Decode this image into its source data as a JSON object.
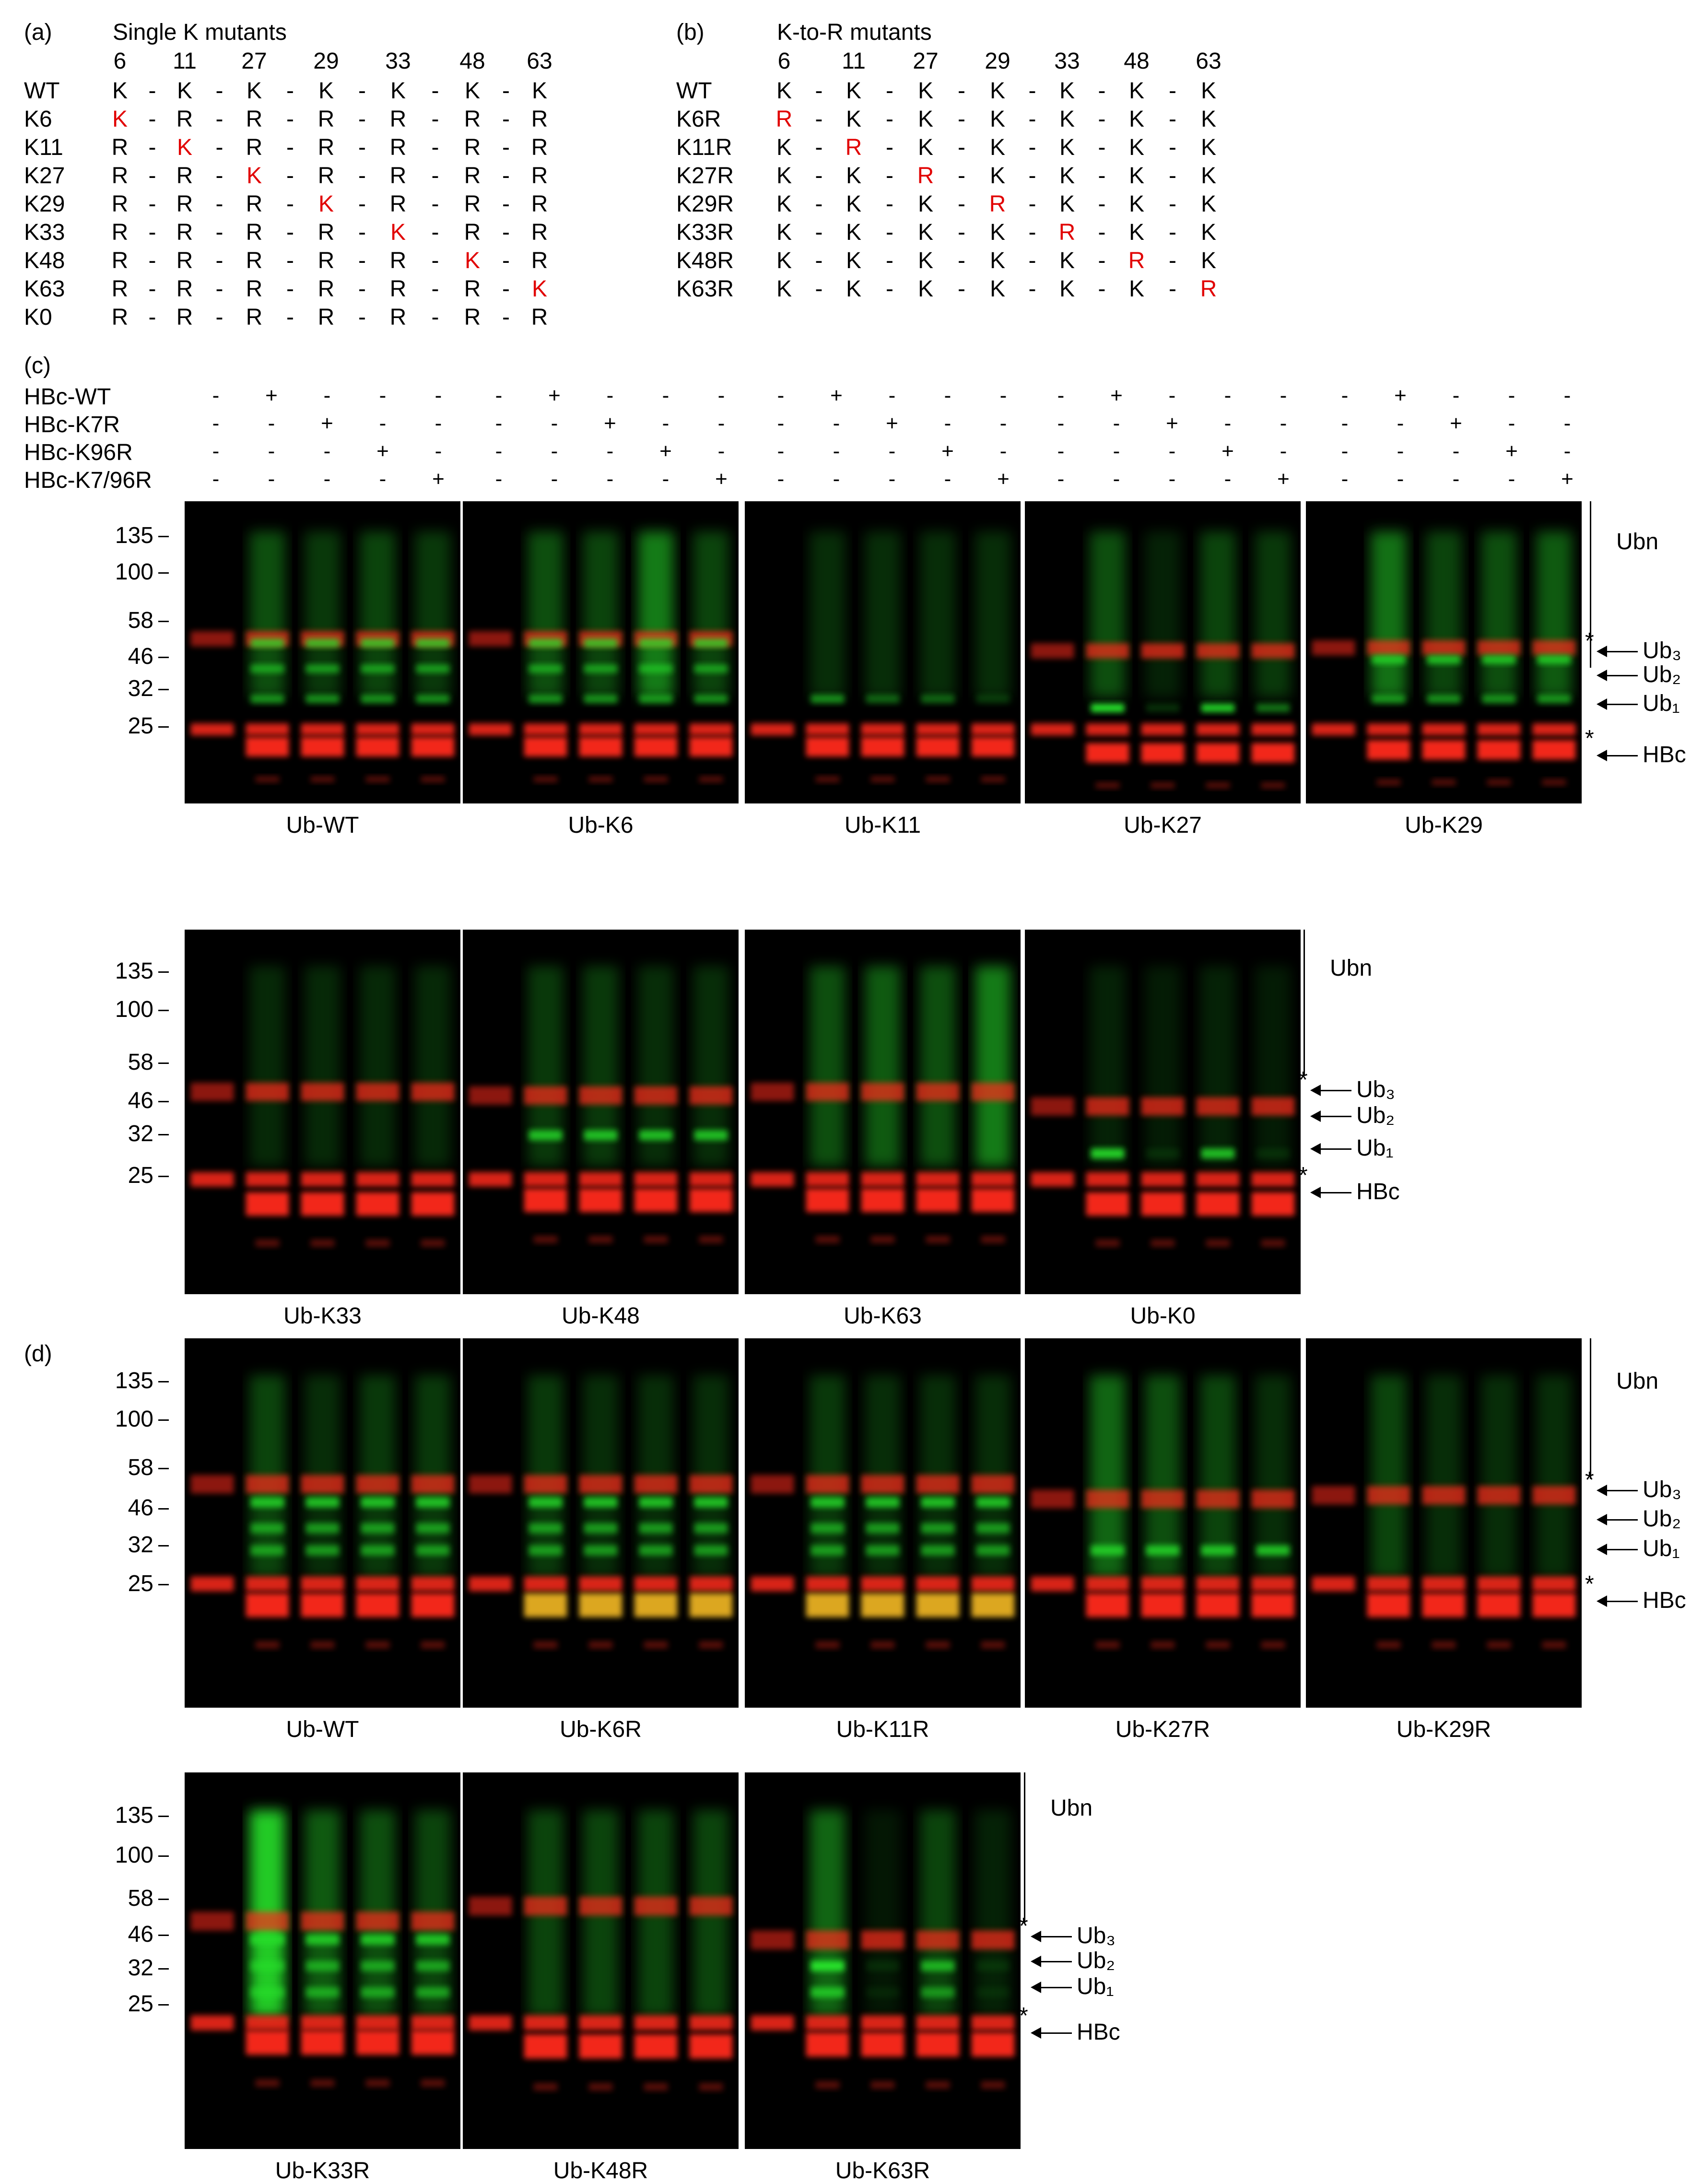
{
  "panel_a": {
    "label": "(a)",
    "title": "Single K mutants",
    "positions": [
      "6",
      "11",
      "27",
      "29",
      "33",
      "48",
      "63"
    ],
    "rows": [
      {
        "name": "WT",
        "cells": [
          "K",
          "K",
          "K",
          "K",
          "K",
          "K",
          "K"
        ],
        "hl": -1
      },
      {
        "name": "K6",
        "cells": [
          "K",
          "R",
          "R",
          "R",
          "R",
          "R",
          "R"
        ],
        "hl": 0
      },
      {
        "name": "K11",
        "cells": [
          "R",
          "K",
          "R",
          "R",
          "R",
          "R",
          "R"
        ],
        "hl": 1
      },
      {
        "name": "K27",
        "cells": [
          "R",
          "R",
          "K",
          "R",
          "R",
          "R",
          "R"
        ],
        "hl": 2
      },
      {
        "name": "K29",
        "cells": [
          "R",
          "R",
          "R",
          "K",
          "R",
          "R",
          "R"
        ],
        "hl": 3
      },
      {
        "name": "K33",
        "cells": [
          "R",
          "R",
          "R",
          "R",
          "K",
          "R",
          "R"
        ],
        "hl": 4
      },
      {
        "name": "K48",
        "cells": [
          "R",
          "R",
          "R",
          "R",
          "R",
          "K",
          "R"
        ],
        "hl": 5
      },
      {
        "name": "K63",
        "cells": [
          "R",
          "R",
          "R",
          "R",
          "R",
          "R",
          "K"
        ],
        "hl": 6
      },
      {
        "name": "K0",
        "cells": [
          "R",
          "R",
          "R",
          "R",
          "R",
          "R",
          "R"
        ],
        "hl": -1
      }
    ]
  },
  "panel_b": {
    "label": "(b)",
    "title": "K-to-R mutants",
    "positions": [
      "6",
      "11",
      "27",
      "29",
      "33",
      "48",
      "63"
    ],
    "rows": [
      {
        "name": "WT",
        "cells": [
          "K",
          "K",
          "K",
          "K",
          "K",
          "K",
          "K"
        ],
        "hl": -1
      },
      {
        "name": "K6R",
        "cells": [
          "R",
          "K",
          "K",
          "K",
          "K",
          "K",
          "K"
        ],
        "hl": 0
      },
      {
        "name": "K11R",
        "cells": [
          "K",
          "R",
          "K",
          "K",
          "K",
          "K",
          "K"
        ],
        "hl": 1
      },
      {
        "name": "K27R",
        "cells": [
          "K",
          "K",
          "R",
          "K",
          "K",
          "K",
          "K"
        ],
        "hl": 2
      },
      {
        "name": "K29R",
        "cells": [
          "K",
          "K",
          "K",
          "R",
          "K",
          "K",
          "K"
        ],
        "hl": 3
      },
      {
        "name": "K33R",
        "cells": [
          "K",
          "K",
          "K",
          "K",
          "R",
          "K",
          "K"
        ],
        "hl": 4
      },
      {
        "name": "K48R",
        "cells": [
          "K",
          "K",
          "K",
          "K",
          "K",
          "R",
          "K"
        ],
        "hl": 5
      },
      {
        "name": "K63R",
        "cells": [
          "K",
          "K",
          "K",
          "K",
          "K",
          "K",
          "R"
        ],
        "hl": 6
      }
    ]
  },
  "panel_c": {
    "label": "(c)",
    "lane_rows": [
      {
        "name": "HBc-WT",
        "signs": [
          "-",
          "+",
          "-",
          "-",
          "-"
        ]
      },
      {
        "name": "HBc-K7R",
        "signs": [
          "-",
          "-",
          "+",
          "-",
          "-"
        ]
      },
      {
        "name": "HBc-K96R",
        "signs": [
          "-",
          "-",
          "-",
          "+",
          "-"
        ]
      },
      {
        "name": "HBc-K7/96R",
        "signs": [
          "-",
          "-",
          "-",
          "-",
          "+"
        ]
      }
    ],
    "blots_row1": [
      "Ub-WT",
      "Ub-K6",
      "Ub-K11",
      "Ub-K27",
      "Ub-K29"
    ],
    "blots_row2": [
      "Ub-K33",
      "Ub-K48",
      "Ub-K63",
      "Ub-K0"
    ]
  },
  "panel_d": {
    "label": "(d)",
    "blots_row1": [
      "Ub-WT",
      "Ub-K6R",
      "Ub-K11R",
      "Ub-K27R",
      "Ub-K29R"
    ],
    "blots_row2": [
      "Ub-K33R",
      "Ub-K48R",
      "Ub-K63R"
    ]
  },
  "mw_markers": [
    "135",
    "100",
    "58",
    "46",
    "32",
    "25"
  ],
  "side_labels": {
    "ubn": "Ubn",
    "ub3": "Ub₃",
    "ub2": "Ub₂",
    "ub1": "Ub₁",
    "hbc": "HBc",
    "star": "*"
  },
  "colors": {
    "red_band": "#ff2a1a",
    "green_band": "#27e02a",
    "highlight_text": "#e10000",
    "blot_bg": "#000000"
  }
}
